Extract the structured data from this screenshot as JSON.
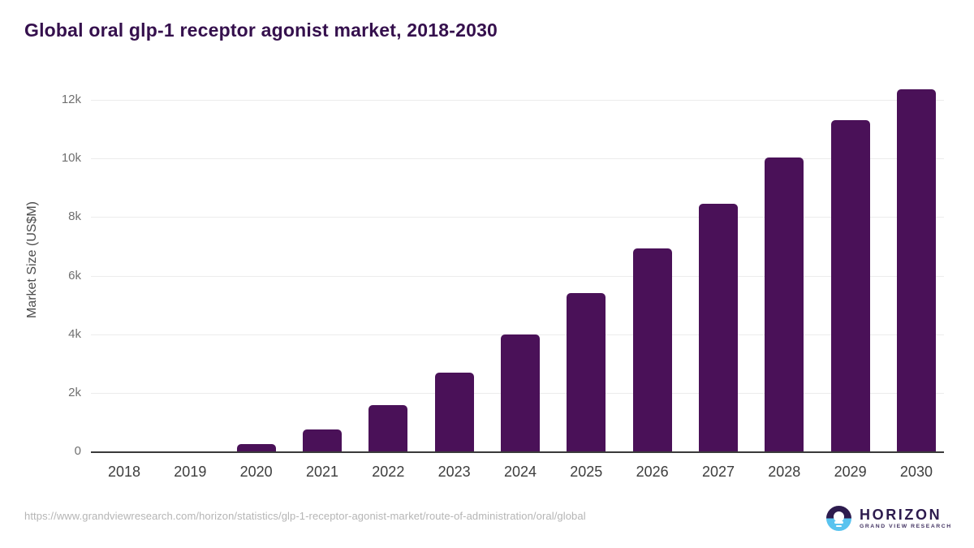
{
  "page": {
    "title": "Global oral glp-1 receptor agonist market, 2018-2030",
    "source_url": "https://www.grandviewresearch.com/horizon/statistics/glp-1-receptor-agonist-market/route-of-administration/oral/global"
  },
  "logo": {
    "name": "HORIZON",
    "subtitle": "GRAND VIEW RESEARCH"
  },
  "chart_data": {
    "type": "bar",
    "title": "Global oral glp-1 receptor agonist market, 2018-2030",
    "categories": [
      "2018",
      "2019",
      "2020",
      "2021",
      "2022",
      "2023",
      "2024",
      "2025",
      "2026",
      "2027",
      "2028",
      "2029",
      "2030"
    ],
    "values": [
      0,
      0,
      250,
      750,
      1570,
      2700,
      3990,
      5400,
      6930,
      8460,
      10040,
      11300,
      12350
    ],
    "xlabel": "",
    "ylabel": "Market Size (US$M)",
    "ylim": [
      0,
      12000
    ],
    "yticks": [
      0,
      2000,
      4000,
      6000,
      8000,
      10000,
      12000
    ],
    "ytick_labels": [
      "0",
      "2k",
      "4k",
      "6k",
      "8k",
      "10k",
      "12k"
    ],
    "grid": true,
    "legend": false
  },
  "colors": {
    "title": "#35104d",
    "bar": "#4a1158",
    "axis_line": "#3a3a3a",
    "gridline": "#ececec",
    "ytick_label": "#707070",
    "xtick_label": "#3d3d3d",
    "url": "#b5b5b5",
    "logo_dark": "#2d1b4e",
    "logo_blue": "#59c3ef"
  }
}
